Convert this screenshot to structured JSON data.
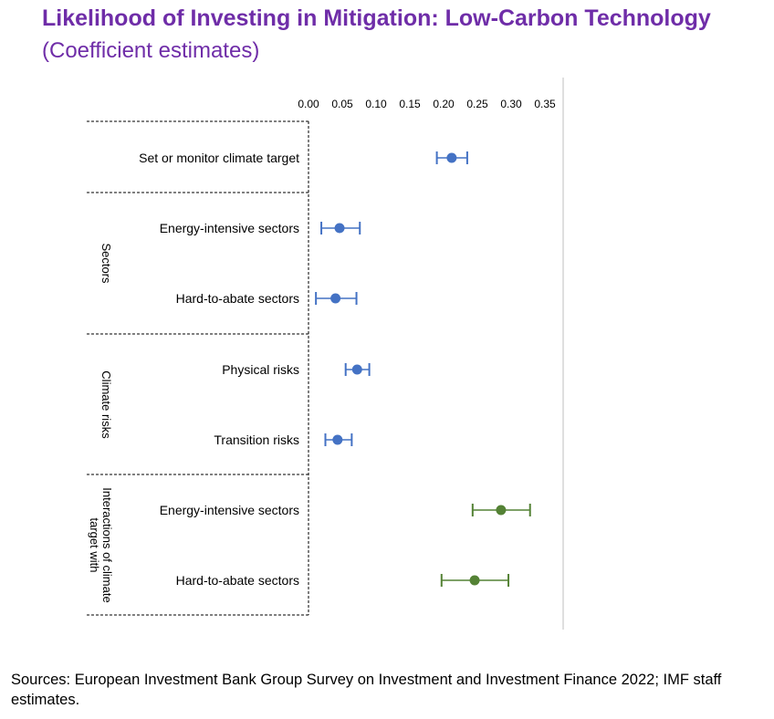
{
  "title": "Likelihood of Investing in Mitigation: Low-Carbon Technology",
  "subtitle": "(Coefficient estimates)",
  "sources": "Sources: European Investment Bank Group Survey on Investment and Investment Finance 2022; IMF staff estimates.",
  "colors": {
    "title": "#6f2da8",
    "blue": "#4472c4",
    "green": "#548235"
  },
  "chart_data": {
    "type": "scatter",
    "orientation": "horizontal",
    "error_bars": true,
    "xlim": [
      0,
      0.35
    ],
    "x_ticks": [
      "0.00",
      "0.05",
      "0.10",
      "0.15",
      "0.20",
      "0.25",
      "0.30",
      "0.35"
    ],
    "groups": [
      {
        "name": "",
        "rows": [
          0
        ]
      },
      {
        "name": "Sectors",
        "rows": [
          1,
          2
        ]
      },
      {
        "name": "Climate risks",
        "rows": [
          3,
          4
        ]
      },
      {
        "name": "Interactions of climate target with",
        "rows": [
          5,
          6
        ]
      }
    ],
    "rows": [
      {
        "label": "Set or monitor climate target",
        "estimate": 0.212,
        "lower": 0.19,
        "upper": 0.235,
        "color": "blue"
      },
      {
        "label": "Energy-intensive sectors",
        "estimate": 0.046,
        "lower": 0.019,
        "upper": 0.076,
        "color": "blue"
      },
      {
        "label": "Hard-to-abate sectors",
        "estimate": 0.04,
        "lower": 0.011,
        "upper": 0.071,
        "color": "blue"
      },
      {
        "label": "Physical risks",
        "estimate": 0.072,
        "lower": 0.055,
        "upper": 0.09,
        "color": "blue"
      },
      {
        "label": "Transition risks",
        "estimate": 0.043,
        "lower": 0.025,
        "upper": 0.064,
        "color": "blue"
      },
      {
        "label": "Energy-intensive sectors",
        "estimate": 0.285,
        "lower": 0.243,
        "upper": 0.328,
        "color": "green"
      },
      {
        "label": "Hard-to-abate sectors",
        "estimate": 0.246,
        "lower": 0.197,
        "upper": 0.296,
        "color": "green"
      }
    ]
  }
}
